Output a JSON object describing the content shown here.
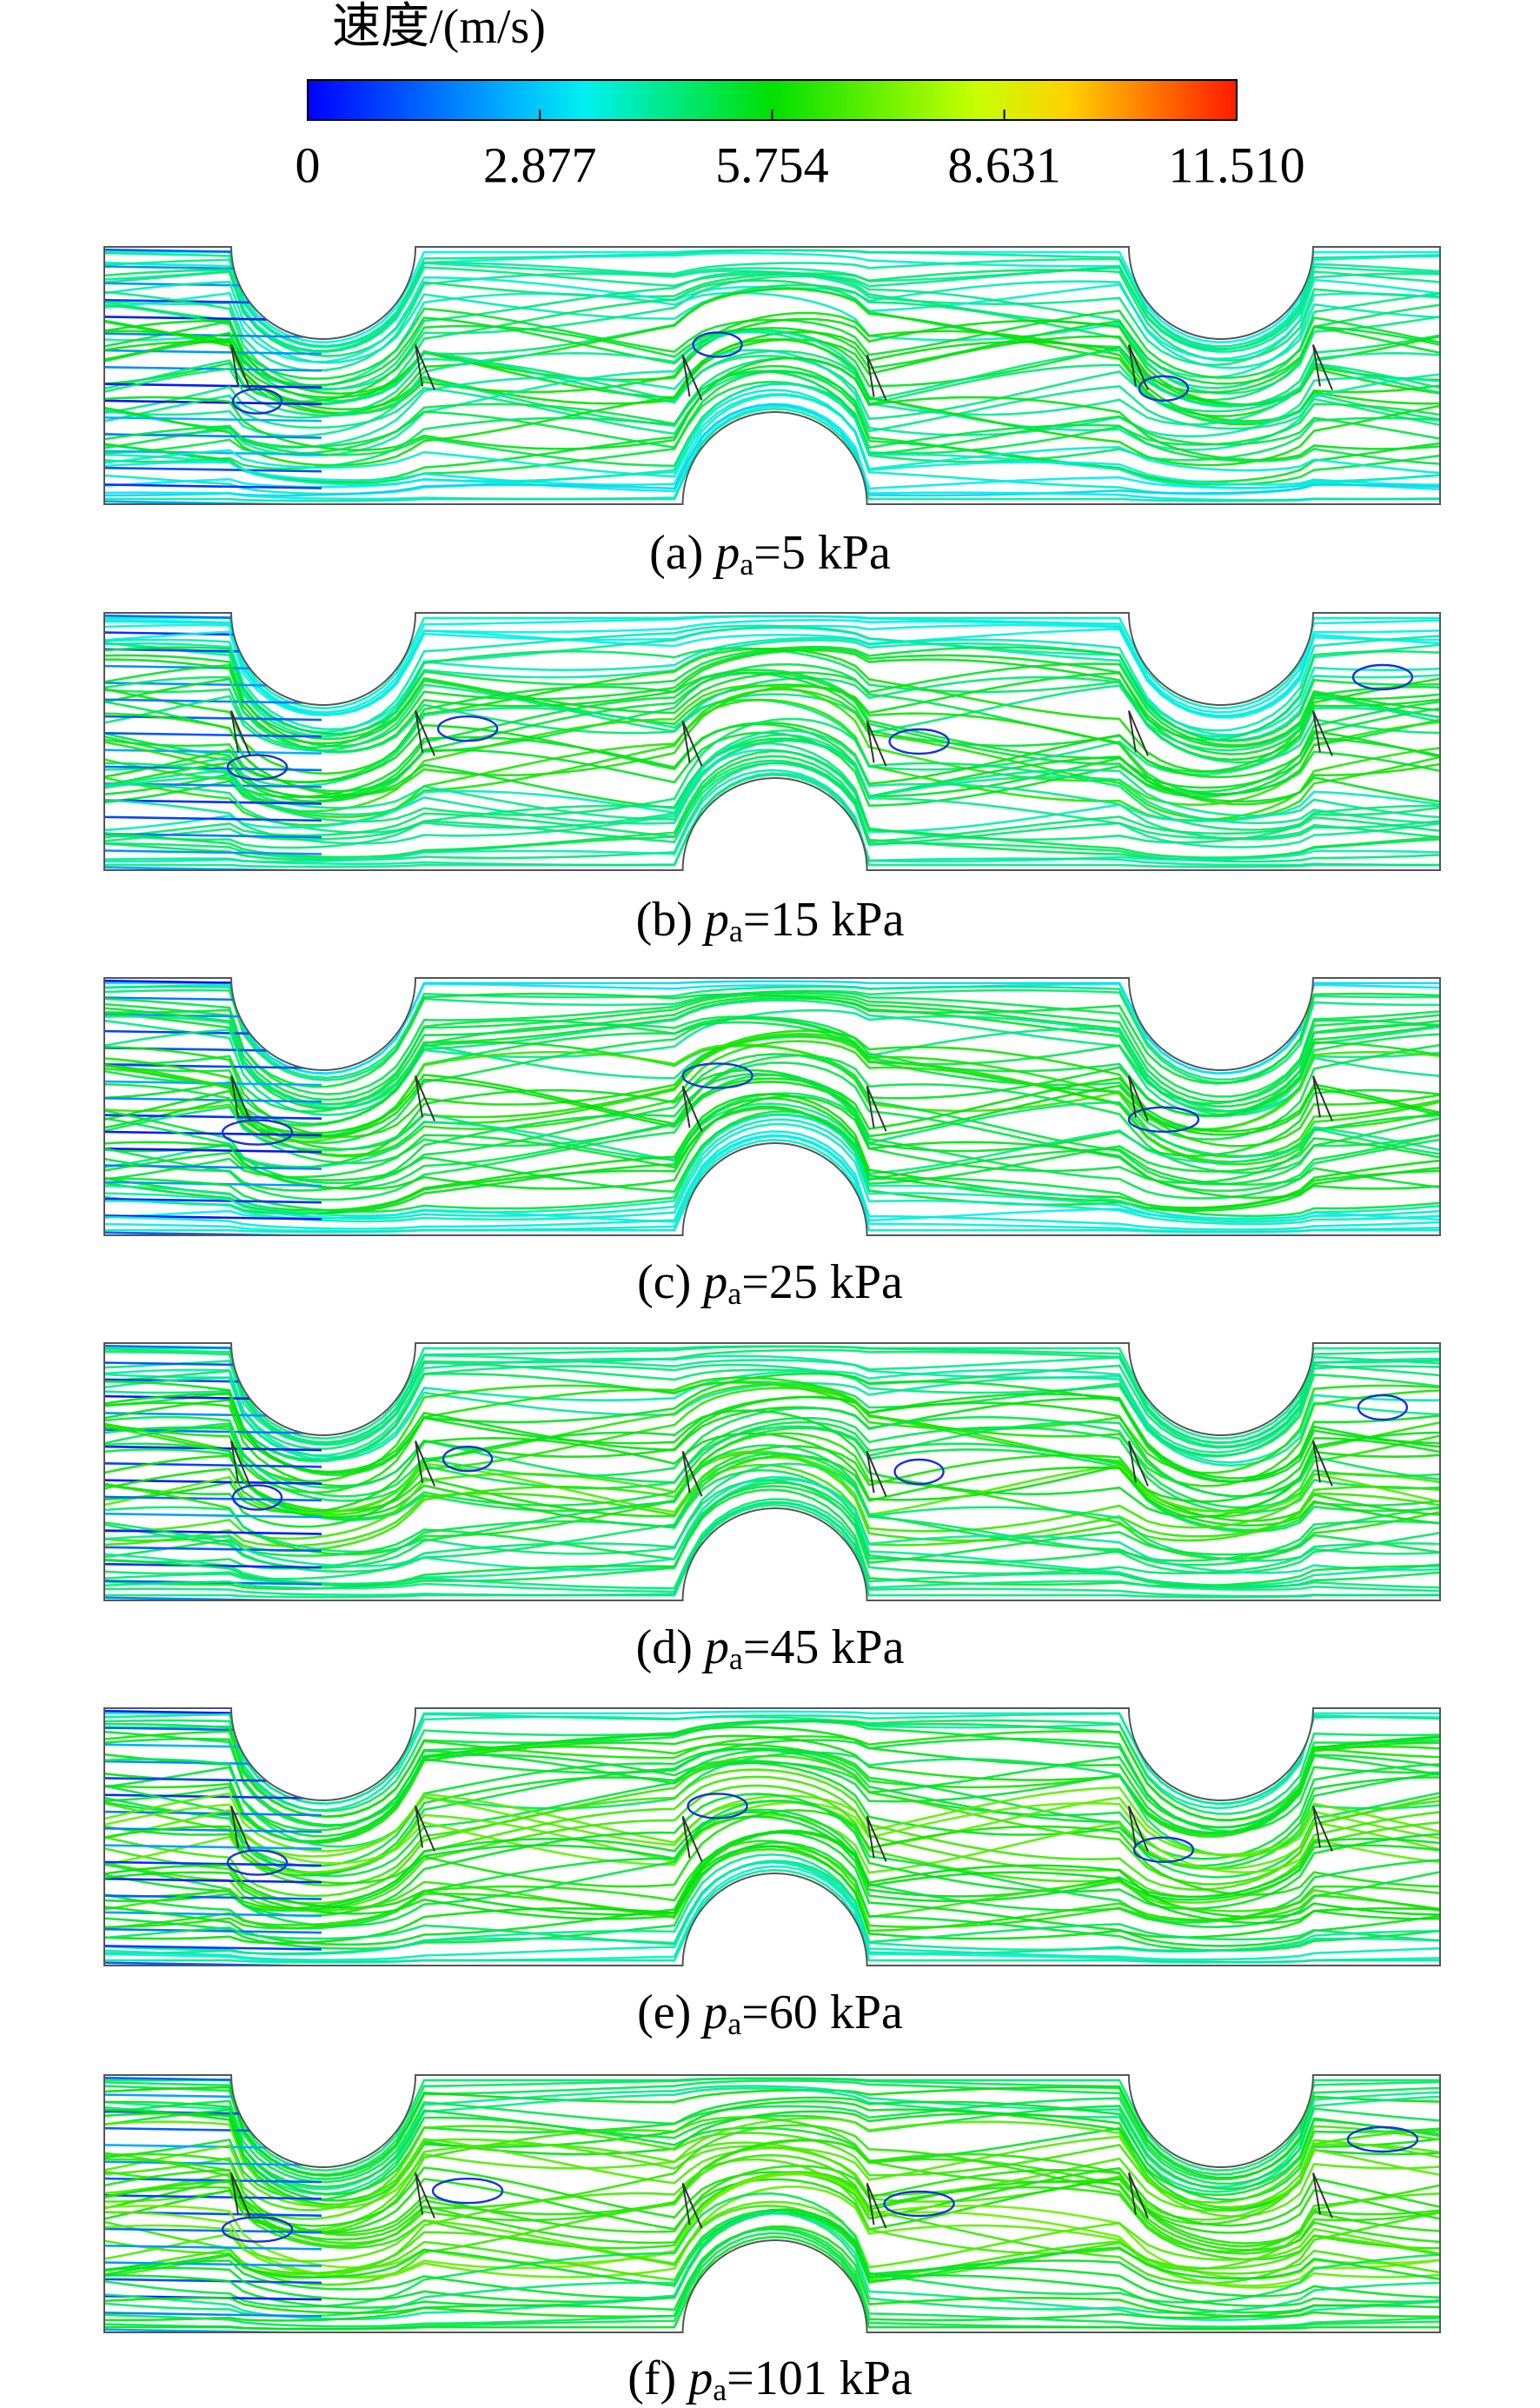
{
  "colorbar": {
    "title": "速度/(m/s)",
    "range": [
      0,
      11.51
    ],
    "ticks": [
      0,
      2.877,
      5.754,
      8.631,
      {
        "value": 11.51,
        "label": "11.510"
      }
    ]
  },
  "panels": [
    {
      "label": "(a)",
      "symbol": "p",
      "subscript": "a",
      "value_text": "=5 kPa"
    },
    {
      "label": "(b)",
      "symbol": "p",
      "subscript": "a",
      "value_text": "=15 kPa"
    },
    {
      "label": "(c)",
      "symbol": "p",
      "subscript": "a",
      "value_text": "=25 kPa"
    },
    {
      "label": "(d)",
      "symbol": "p",
      "subscript": "a",
      "value_text": "=45 kPa"
    },
    {
      "label": "(e)",
      "symbol": "p",
      "subscript": "a",
      "value_text": "=60 kPa"
    },
    {
      "label": "(f)",
      "symbol": "p",
      "subscript": "a",
      "value_text": "=101 kPa"
    }
  ]
}
